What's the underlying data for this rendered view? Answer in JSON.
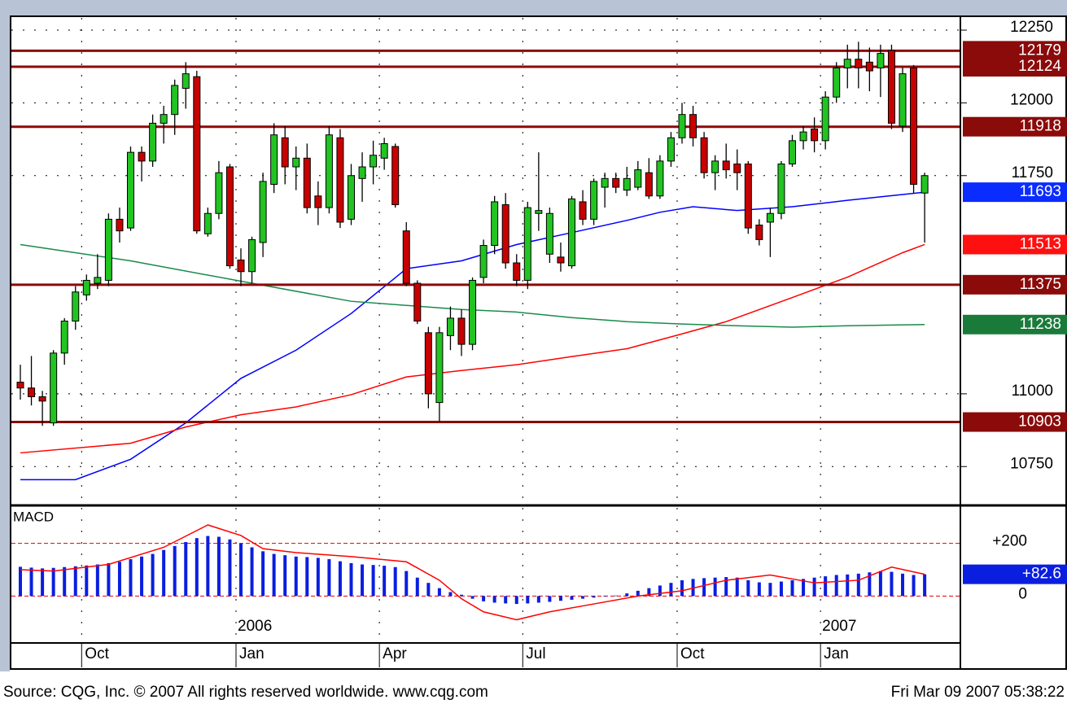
{
  "chart_data": [
    {
      "type": "candlestick",
      "ylim": [
        10622,
        12292
      ],
      "yticks": [
        10750,
        11000,
        11750,
        12000,
        12250
      ],
      "grid": true,
      "up_color": "#22c422",
      "down_color": "#c80000",
      "ohlc": [
        [
          11040,
          11100,
          10980,
          11020
        ],
        [
          11020,
          11130,
          10960,
          10990
        ],
        [
          10990,
          11010,
          10890,
          10975
        ],
        [
          10900,
          11150,
          10890,
          11140
        ],
        [
          11140,
          11260,
          11100,
          11250
        ],
        [
          11250,
          11370,
          11220,
          11350
        ],
        [
          11340,
          11410,
          11320,
          11390
        ],
        [
          11380,
          11480,
          11360,
          11400
        ],
        [
          11390,
          11620,
          11370,
          11600
        ],
        [
          11600,
          11640,
          11520,
          11560
        ],
        [
          11570,
          11850,
          11560,
          11830
        ],
        [
          11830,
          11850,
          11730,
          11800
        ],
        [
          11800,
          11960,
          11780,
          11930
        ],
        [
          11930,
          11990,
          11860,
          11960
        ],
        [
          11960,
          12080,
          11890,
          12060
        ],
        [
          12050,
          12140,
          11980,
          12100
        ],
        [
          12090,
          12110,
          11550,
          11560
        ],
        [
          11550,
          11640,
          11540,
          11620
        ],
        [
          11620,
          11800,
          11600,
          11760
        ],
        [
          11780,
          11790,
          11430,
          11440
        ],
        [
          11460,
          11500,
          11370,
          11420
        ],
        [
          11420,
          11540,
          11380,
          11530
        ],
        [
          11520,
          11760,
          11470,
          11730
        ],
        [
          11720,
          11930,
          11690,
          11890
        ],
        [
          11880,
          11920,
          11720,
          11780
        ],
        [
          11780,
          11850,
          11700,
          11810
        ],
        [
          11810,
          11860,
          11620,
          11640
        ],
        [
          11680,
          11730,
          11580,
          11640
        ],
        [
          11640,
          11920,
          11620,
          11890
        ],
        [
          11880,
          11910,
          11570,
          11590
        ],
        [
          11600,
          11790,
          11580,
          11750
        ],
        [
          11740,
          11830,
          11660,
          11780
        ],
        [
          11780,
          11870,
          11720,
          11820
        ],
        [
          11810,
          11880,
          11770,
          11860
        ],
        [
          11850,
          11860,
          11640,
          11650
        ],
        [
          11560,
          11590,
          11370,
          11380
        ],
        [
          11380,
          11390,
          11240,
          11250
        ],
        [
          11210,
          11230,
          10950,
          11000
        ],
        [
          10970,
          11230,
          10905,
          11210
        ],
        [
          11200,
          11300,
          11150,
          11260
        ],
        [
          11260,
          11290,
          11130,
          11170
        ],
        [
          11170,
          11400,
          11150,
          11390
        ],
        [
          11400,
          11530,
          11380,
          11510
        ],
        [
          11510,
          11680,
          11480,
          11660
        ],
        [
          11650,
          11690,
          11430,
          11450
        ],
        [
          11450,
          11480,
          11370,
          11390
        ],
        [
          11390,
          11660,
          11360,
          11640
        ],
        [
          11620,
          11830,
          11560,
          11630
        ],
        [
          11480,
          11640,
          11450,
          11620
        ],
        [
          11470,
          11520,
          11420,
          11450
        ],
        [
          11440,
          11680,
          11430,
          11670
        ],
        [
          11660,
          11700,
          11580,
          11600
        ],
        [
          11600,
          11740,
          11580,
          11730
        ],
        [
          11710,
          11760,
          11640,
          11740
        ],
        [
          11740,
          11760,
          11690,
          11710
        ],
        [
          11700,
          11780,
          11680,
          11740
        ],
        [
          11710,
          11800,
          11700,
          11770
        ],
        [
          11760,
          11810,
          11670,
          11680
        ],
        [
          11680,
          11820,
          11670,
          11800
        ],
        [
          11800,
          11900,
          11780,
          11880
        ],
        [
          11880,
          12000,
          11860,
          11960
        ],
        [
          11960,
          11990,
          11850,
          11880
        ],
        [
          11880,
          11900,
          11740,
          11760
        ],
        [
          11760,
          11820,
          11700,
          11800
        ],
        [
          11800,
          11860,
          11740,
          11770
        ],
        [
          11790,
          11840,
          11700,
          11760
        ],
        [
          11790,
          11800,
          11550,
          11570
        ],
        [
          11580,
          11600,
          11510,
          11530
        ],
        [
          11590,
          11640,
          11470,
          11620
        ],
        [
          11620,
          11800,
          11600,
          11790
        ],
        [
          11790,
          11890,
          11780,
          11870
        ],
        [
          11870,
          11920,
          11840,
          11900
        ],
        [
          11910,
          11950,
          11830,
          11870
        ],
        [
          11870,
          12040,
          11840,
          12020
        ],
        [
          12020,
          12140,
          12000,
          12120
        ],
        [
          12120,
          12200,
          12050,
          12150
        ],
        [
          12150,
          12210,
          12050,
          12120
        ],
        [
          12140,
          12190,
          12040,
          12110
        ],
        [
          12120,
          12200,
          12020,
          12170
        ],
        [
          12180,
          12200,
          11910,
          11930
        ],
        [
          11920,
          12120,
          11900,
          12100
        ],
        [
          12120,
          12130,
          11690,
          11720
        ],
        [
          11690,
          11760,
          11520,
          11750
        ]
      ],
      "averages": [
        {
          "color": "#0000ff",
          "x": [
            0,
            5,
            10,
            15,
            20,
            25,
            30,
            35,
            40,
            45,
            50,
            55,
            58,
            61,
            65,
            70,
            75,
            80,
            82
          ],
          "values": [
            10705,
            10705,
            10775,
            10900,
            11053,
            11150,
            11276,
            11430,
            11457,
            11513,
            11554,
            11596,
            11624,
            11643,
            11630,
            11643,
            11665,
            11685,
            11693
          ]
        },
        {
          "color": "#ff0000",
          "x": [
            0,
            10,
            15,
            20,
            25,
            30,
            35,
            40,
            45,
            50,
            55,
            60,
            64,
            70,
            75,
            80,
            82
          ],
          "values": [
            10797,
            10830,
            10886,
            10928,
            10955,
            10997,
            11058,
            11080,
            11100,
            11128,
            11155,
            11206,
            11248,
            11331,
            11401,
            11485,
            11513
          ]
        },
        {
          "color": "#1a8a4a",
          "x": [
            0,
            10,
            20,
            30,
            35,
            40,
            45,
            50,
            55,
            60,
            65,
            70,
            75,
            82
          ],
          "values": [
            11513,
            11457,
            11387,
            11318,
            11304,
            11290,
            11281,
            11262,
            11248,
            11240,
            11234,
            11229,
            11234,
            11238
          ]
        }
      ],
      "levels": [
        12179,
        12124,
        11918,
        11375,
        10903
      ],
      "level_color": "#8b0a0a",
      "markers": [
        {
          "value": 11693,
          "color": "#0a2cff"
        },
        {
          "value": 11513,
          "color": "#ff1010"
        },
        {
          "value": 11238,
          "color": "#1a7a3a"
        }
      ],
      "months": [
        {
          "at": 6,
          "label": "Oct"
        },
        {
          "at": 20,
          "label": "Jan"
        },
        {
          "at": 33,
          "label": "Apr"
        },
        {
          "at": 46,
          "label": "Jul"
        },
        {
          "at": 60,
          "label": "Oct"
        },
        {
          "at": 73,
          "label": "Jan"
        }
      ],
      "years": [
        {
          "at": 20,
          "label": "2006"
        },
        {
          "at": 73,
          "label": "2007"
        }
      ]
    },
    {
      "type": "macd",
      "title": "MACD",
      "ylim": [
        -175,
        341
      ],
      "yticks": [
        {
          "value": 200,
          "label": "+200"
        },
        0
      ],
      "grid_color": "#e00000",
      "color": "#0a1ee0",
      "values": [
        111,
        108,
        105,
        107,
        110,
        113,
        116,
        120,
        125,
        130,
        140,
        150,
        160,
        175,
        190,
        205,
        220,
        228,
        225,
        215,
        200,
        185,
        170,
        160,
        155,
        150,
        148,
        145,
        140,
        132,
        125,
        120,
        118,
        115,
        110,
        95,
        70,
        50,
        30,
        15,
        5,
        -10,
        -20,
        -25,
        -28,
        -30,
        -28,
        -25,
        -22,
        -18,
        -14,
        -10,
        -6,
        -2,
        2,
        10,
        20,
        30,
        40,
        50,
        60,
        65,
        68,
        70,
        72,
        70,
        60,
        52,
        50,
        55,
        60,
        65,
        70,
        75,
        80,
        82,
        85,
        90,
        95,
        92,
        85,
        80,
        82.6
      ],
      "signal": {
        "color": "#ff0000",
        "x": [
          0,
          3,
          8,
          13,
          17,
          20,
          22,
          25,
          30,
          35,
          38,
          40,
          42,
          45,
          48,
          52,
          56,
          60,
          64,
          68,
          72,
          76,
          79,
          82
        ],
        "values": [
          100,
          95,
          120,
          185,
          270,
          230,
          180,
          165,
          150,
          130,
          60,
          -10,
          -60,
          -90,
          -60,
          -30,
          0,
          20,
          60,
          80,
          50,
          60,
          110,
          82.6
        ]
      },
      "marker": {
        "value": 82.6,
        "label": "+82.6",
        "color": "#0a1ee0"
      }
    }
  ],
  "footer": {
    "source": "Source: CQG, Inc. © 2007 All rights reserved worldwide. www.cqg.com",
    "timestamp": "Fri Mar 09 2007 05:38:22"
  }
}
